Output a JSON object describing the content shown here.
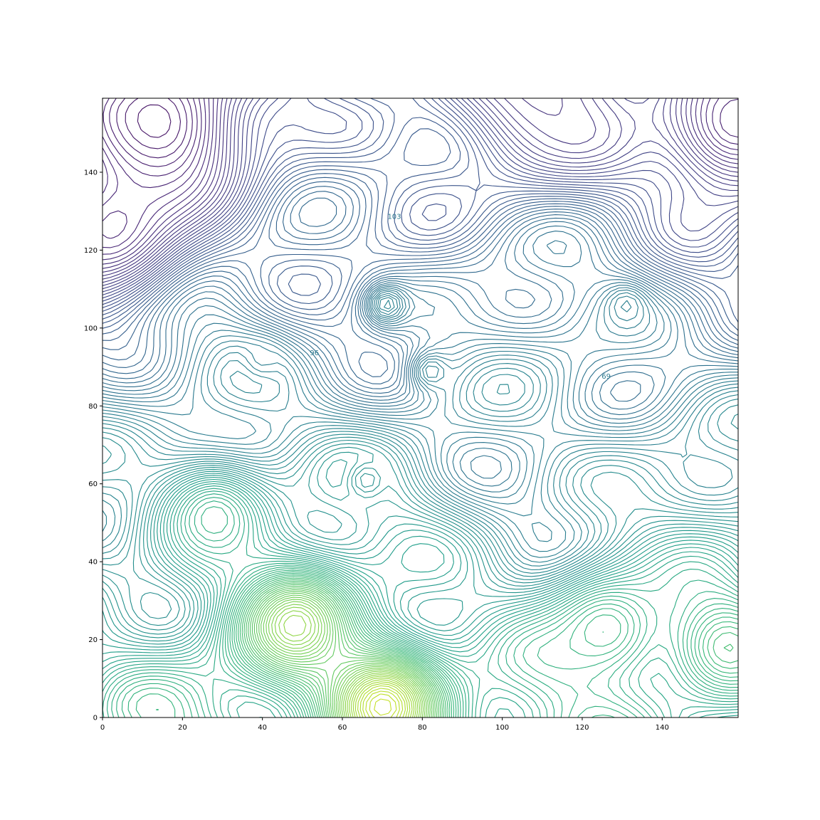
{
  "chart_data": {
    "type": "contour",
    "title": "",
    "xlabel": "",
    "ylabel": "",
    "xlim": [
      0,
      159
    ],
    "ylim": [
      0,
      159
    ],
    "x_ticks": [
      0,
      20,
      40,
      60,
      80,
      100,
      120,
      140
    ],
    "y_ticks": [
      0,
      20,
      40,
      60,
      80,
      100,
      120,
      140
    ],
    "x_tick_labels": [
      "0",
      "20",
      "40",
      "60",
      "80",
      "100",
      "120",
      "140"
    ],
    "y_tick_labels": [
      "0",
      "20",
      "40",
      "60",
      "80",
      "100",
      "120",
      "140"
    ],
    "colormap": "viridis",
    "grid": false,
    "legend": "none",
    "level_range": [
      0,
      255
    ],
    "features": [
      {
        "kind": "high",
        "x": 70,
        "y": 3,
        "value": 250
      },
      {
        "kind": "high",
        "x": 48,
        "y": 24,
        "value": 225
      },
      {
        "kind": "high",
        "x": 126,
        "y": 23,
        "value": 175
      },
      {
        "kind": "high",
        "x": 156,
        "y": 18,
        "value": 185
      },
      {
        "kind": "high",
        "x": 28,
        "y": 52,
        "value": 170
      },
      {
        "kind": "low",
        "x": 14,
        "y": 152,
        "value": 5
      },
      {
        "kind": "low",
        "x": 2,
        "y": 125,
        "value": 15
      },
      {
        "kind": "low",
        "x": 158,
        "y": 152,
        "value": 10
      },
      {
        "kind": "low",
        "x": 110,
        "y": 160,
        "value": 35
      },
      {
        "kind": "plateau",
        "x": 71,
        "y": 106,
        "value": 120
      },
      {
        "kind": "plateau",
        "x": 82,
        "y": 89,
        "value": 115
      },
      {
        "kind": "plateau",
        "x": 131,
        "y": 106,
        "value": 112
      },
      {
        "kind": "plateau",
        "x": 40,
        "y": 92,
        "value": 105
      },
      {
        "kind": "plateau",
        "x": 66,
        "y": 61,
        "value": 120
      }
    ],
    "contour_labels": [
      {
        "text": "103",
        "x": 73,
        "y": 128
      },
      {
        "text": "96",
        "x": 53,
        "y": 93
      },
      {
        "text": "69",
        "x": 126,
        "y": 87
      }
    ]
  }
}
